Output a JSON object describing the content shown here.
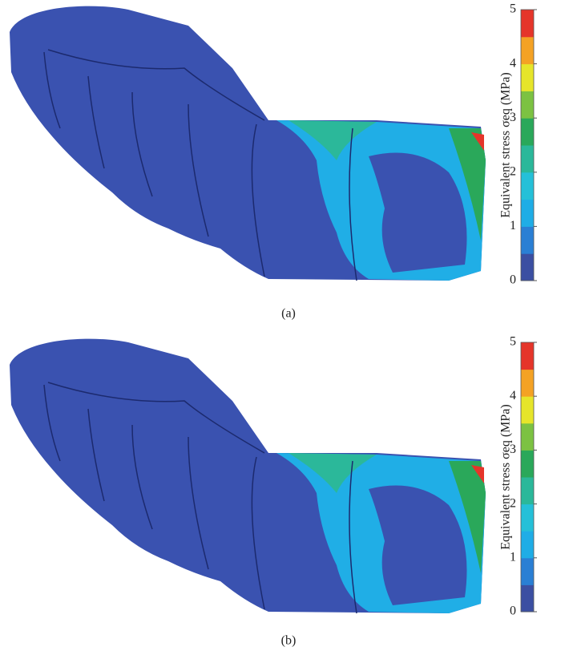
{
  "panels": [
    {
      "label": "(a)",
      "colorbar": {
        "label": "Equivalent stress σeq (MPa)",
        "range": [
          0,
          5
        ],
        "ticks": [
          0,
          1,
          2,
          3,
          4,
          5
        ],
        "colors": [
          "#3b4fa2",
          "#2a7fd4",
          "#1fade6",
          "#25c0d8",
          "#2bb89a",
          "#2aa85a",
          "#7cc242",
          "#e6e52a",
          "#f4a224",
          "#e5352a"
        ]
      }
    },
    {
      "label": "(b)",
      "colorbar": {
        "label": "Equivalent stress σeq (MPa)",
        "range": [
          0,
          5
        ],
        "ticks": [
          0,
          1,
          2,
          3,
          4,
          5
        ],
        "colors": [
          "#3b4fa2",
          "#2a7fd4",
          "#1fade6",
          "#25c0d8",
          "#2bb89a",
          "#2aa85a",
          "#7cc242",
          "#e6e52a",
          "#f4a224",
          "#e5352a"
        ]
      }
    }
  ]
}
